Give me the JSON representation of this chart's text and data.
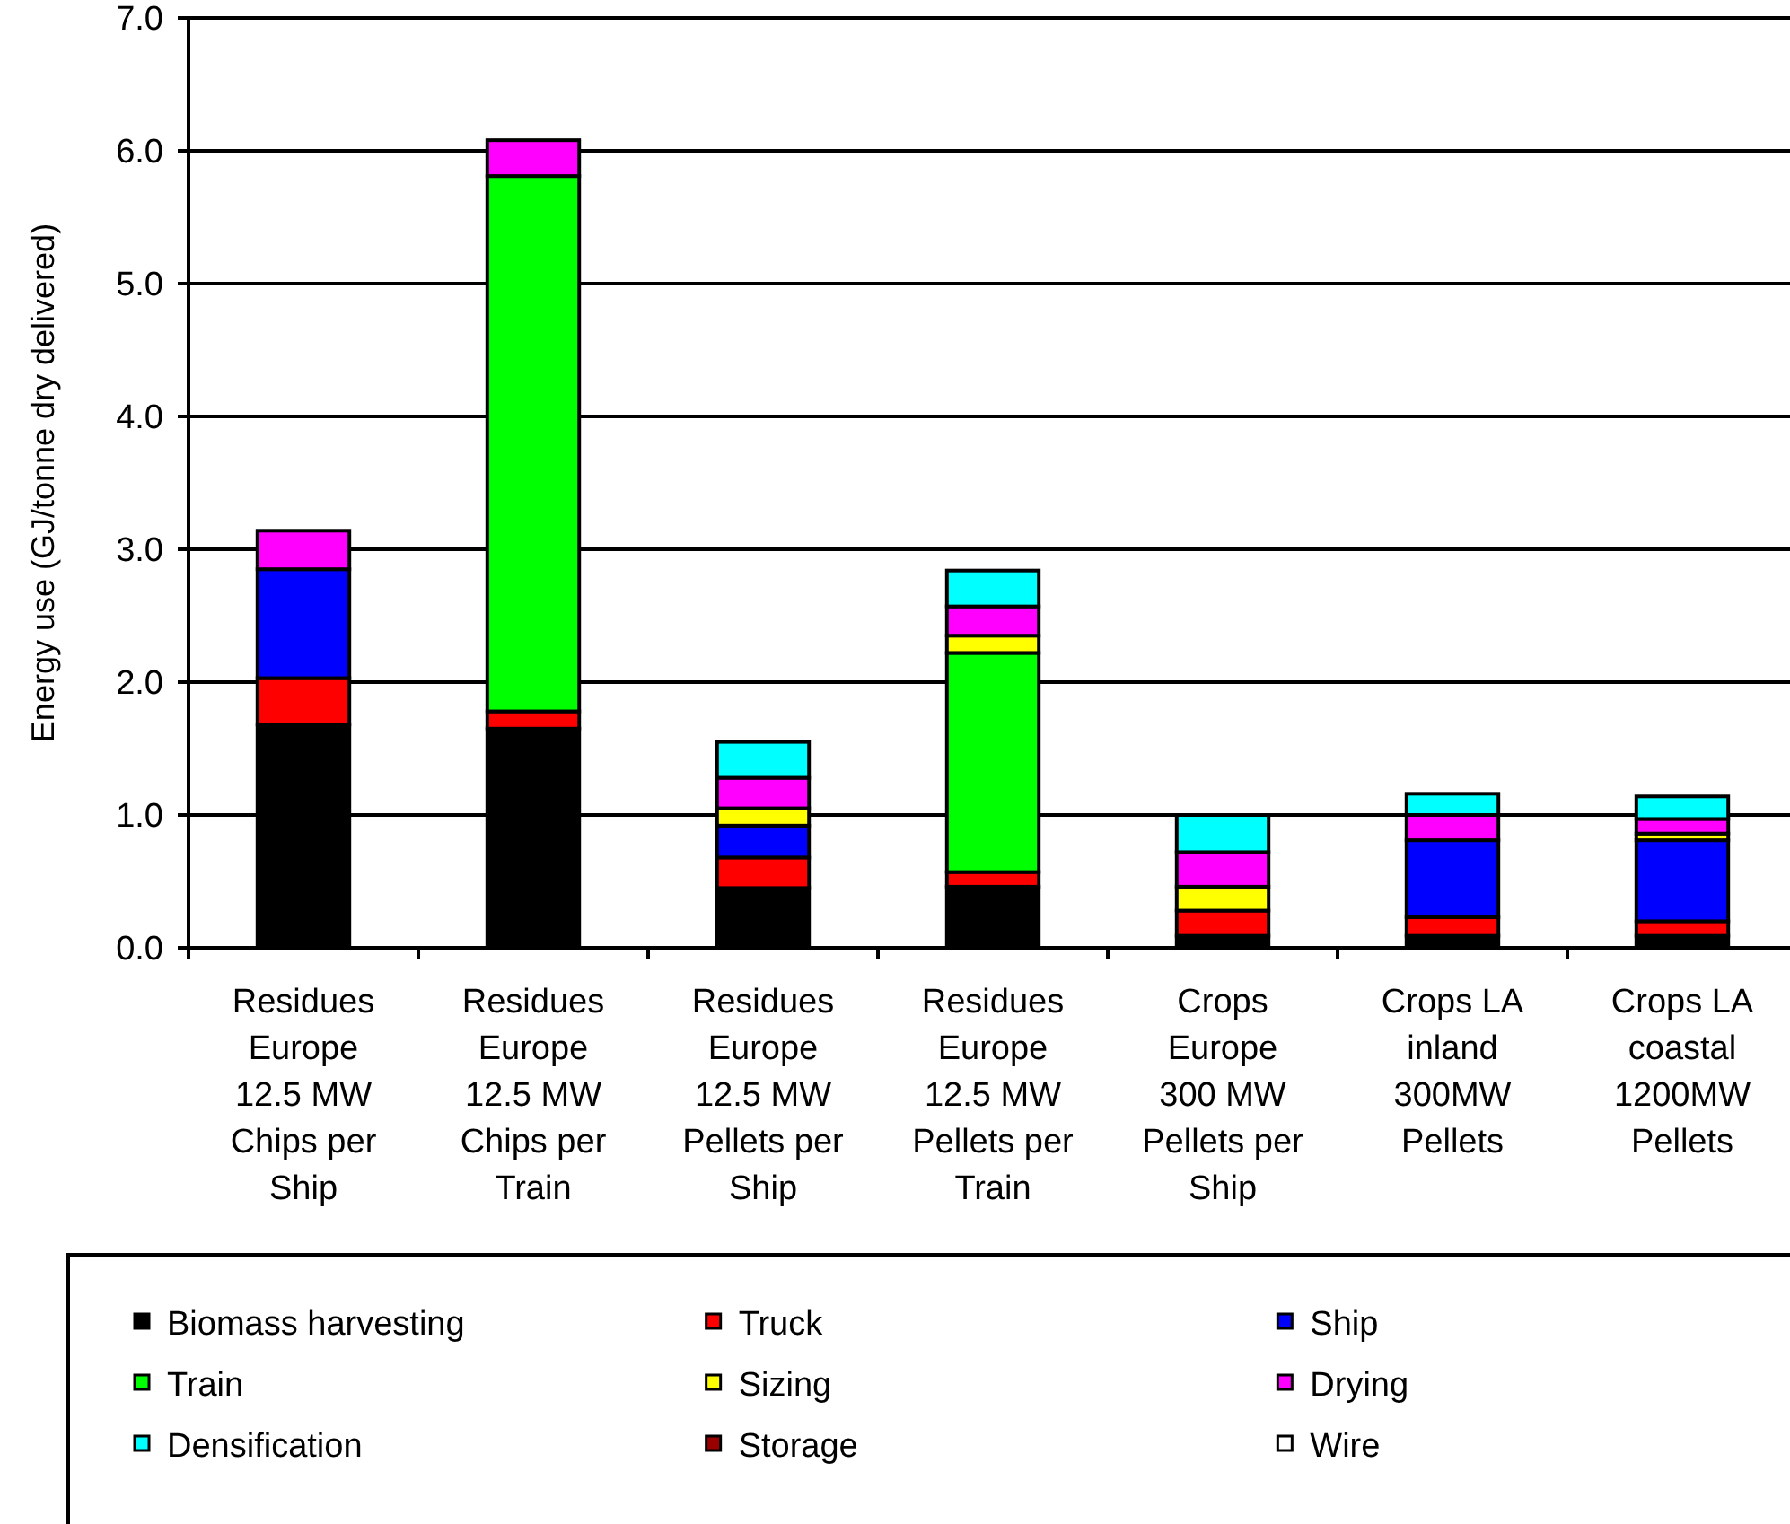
{
  "chart_data": {
    "type": "bar",
    "stacked": true,
    "ylabel": "Energy use (GJ/tonne dry delivered)",
    "categories": [
      "Residues\nEurope\n12.5 MW\nChips per\nShip",
      "Residues\nEurope\n12.5 MW\nChips per\nTrain",
      "Residues\nEurope\n12.5 MW\nPellets per\nShip",
      "Residues\nEurope\n12.5 MW\nPellets per\nTrain",
      "Crops\nEurope\n300 MW\nPellets per\nShip",
      "Crops LA\ninland\n300MW\nPellets",
      "Crops LA\ncoastal\n1200MW\nPellets"
    ],
    "series": [
      {
        "name": "Biomass  harvesting",
        "color": "#000000",
        "values": [
          1.68,
          1.65,
          0.45,
          0.46,
          0.09,
          0.09,
          0.09
        ]
      },
      {
        "name": "Truck",
        "color": "#ff0000",
        "values": [
          0.35,
          0.13,
          0.23,
          0.11,
          0.19,
          0.14,
          0.11
        ]
      },
      {
        "name": "Ship",
        "color": "#0000ff",
        "values": [
          0.82,
          0,
          0.24,
          0,
          0,
          0.58,
          0.61
        ]
      },
      {
        "name": "Train",
        "color": "#00ff00",
        "values": [
          0,
          4.03,
          0,
          1.65,
          0,
          0,
          0
        ]
      },
      {
        "name": "Sizing",
        "color": "#ffff00",
        "values": [
          0,
          0,
          0.13,
          0.13,
          0.18,
          0,
          0.05
        ]
      },
      {
        "name": "Drying",
        "color": "#ff00ff",
        "values": [
          0.29,
          0.27,
          0.23,
          0.22,
          0.26,
          0.19,
          0.11
        ]
      },
      {
        "name": "Densification",
        "color": "#00ffff",
        "values": [
          0,
          0,
          0.27,
          0.27,
          0.28,
          0.16,
          0.17
        ]
      },
      {
        "name": "Storage",
        "color": "#990000",
        "values": [
          0,
          0,
          0,
          0,
          0,
          0,
          0
        ]
      },
      {
        "name": "Wire",
        "color": "#ffffff",
        "values": [
          0,
          0,
          0,
          0,
          0,
          0,
          0
        ]
      }
    ],
    "ylim": [
      0,
      7
    ],
    "yticks": [
      {
        "value": 0,
        "label": "0.0"
      },
      {
        "value": 1,
        "label": "1.0"
      },
      {
        "value": 2,
        "label": "2.0"
      },
      {
        "value": 3,
        "label": "3.0"
      },
      {
        "value": 4,
        "label": "4.0"
      },
      {
        "value": 5,
        "label": "5.0"
      },
      {
        "value": 6,
        "label": "6.0"
      },
      {
        "value": 7,
        "label": "7.0"
      }
    ],
    "grid": "y",
    "legend": "bottom"
  }
}
